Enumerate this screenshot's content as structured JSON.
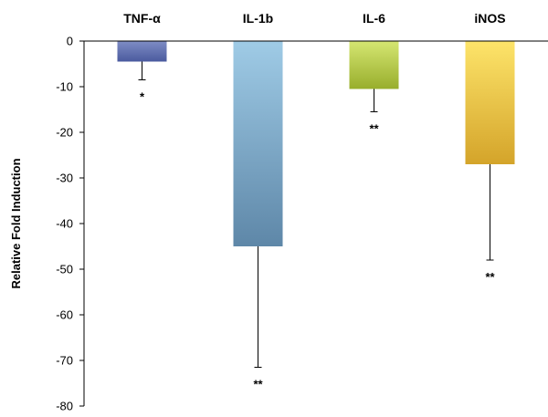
{
  "chart_data": {
    "type": "bar",
    "title": "",
    "xlabel": "",
    "ylabel": "Relative Fold Induction",
    "ylim": [
      -80,
      0
    ],
    "yticks": [
      0,
      -10,
      -20,
      -30,
      -40,
      -50,
      -60,
      -70,
      -80
    ],
    "categories": [
      "TNF-α",
      "IL-1b",
      "IL-6",
      "iNOS"
    ],
    "values": [
      -4.5,
      -45,
      -10.5,
      -27
    ],
    "error_low": [
      -8.5,
      -71.5,
      -15.5,
      -48
    ],
    "significance": [
      "*",
      "**",
      "**",
      "**"
    ],
    "category_axis_position": "top",
    "grid": false,
    "legend": "none",
    "colors": [
      {
        "top": "#7f8dc5",
        "bottom": "#4a5a9e"
      },
      {
        "top": "#9fcbe6",
        "bottom": "#5e87a8"
      },
      {
        "top": "#d5e672",
        "bottom": "#98ae2c"
      },
      {
        "top": "#fde46a",
        "bottom": "#d4a42a"
      }
    ]
  }
}
